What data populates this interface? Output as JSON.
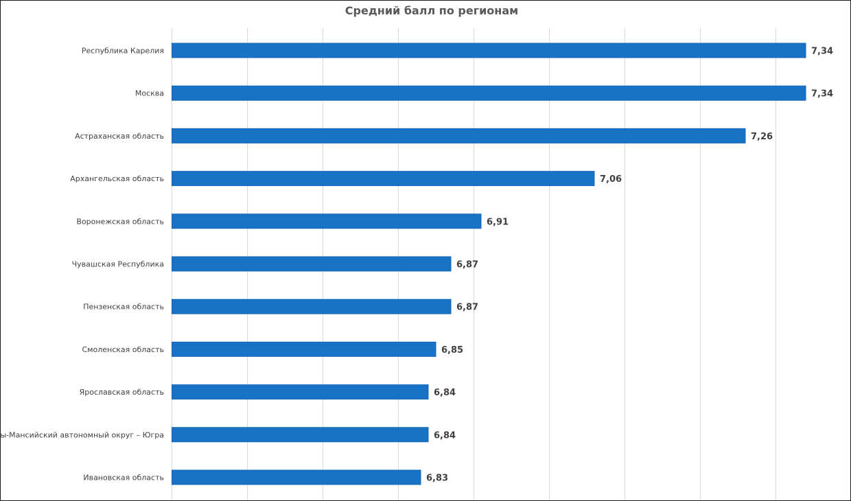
{
  "chart_data": {
    "type": "bar",
    "orientation": "horizontal",
    "title": "Средний балл по регионам",
    "categories": [
      "Республика Карелия",
      "Москва",
      "Астраханская область",
      "Архангельская область",
      "Воронежская область",
      "Чувашская Республика",
      "Пензенская область",
      "Смоленская область",
      "Ярославская область",
      "Ханты-Мансийский автономный округ – Югра",
      "Ивановская область"
    ],
    "values": [
      7.34,
      7.34,
      7.26,
      7.06,
      6.91,
      6.87,
      6.87,
      6.85,
      6.84,
      6.84,
      6.83
    ],
    "value_labels": [
      "7,34",
      "7,34",
      "7,26",
      "7,06",
      "6,91",
      "6,87",
      "6,87",
      "6,85",
      "6,84",
      "6,84",
      "6,83"
    ],
    "xlim": [
      6.5,
      7.4
    ],
    "grid_step": 0.1,
    "grid": true,
    "legend": "none",
    "bar_color": "#1873c6",
    "xlabel": "",
    "ylabel": ""
  }
}
